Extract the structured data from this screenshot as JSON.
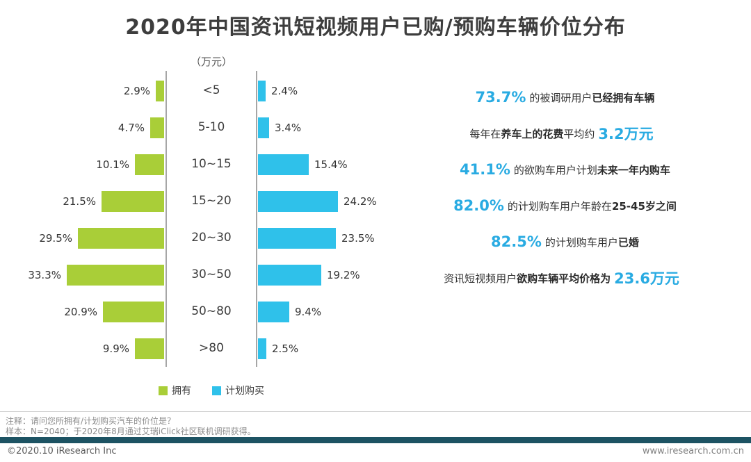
{
  "chart_data": {
    "type": "bar",
    "subtype": "butterfly",
    "title": "2020年中国资讯短视频用户已购/预购车辆价位分布",
    "unit_label": "（万元）",
    "categories": [
      "<5",
      "5-10",
      "10~15",
      "15~20",
      "20~30",
      "30~50",
      "50~80",
      ">80"
    ],
    "series": [
      {
        "name": "拥有",
        "color": "#a9ce38",
        "direction": "left",
        "values": [
          2.9,
          4.7,
          10.1,
          21.5,
          29.5,
          33.3,
          20.9,
          9.9
        ]
      },
      {
        "name": "计划购买",
        "color": "#2fc1ea",
        "direction": "right",
        "values": [
          2.4,
          3.4,
          15.4,
          24.2,
          23.5,
          19.2,
          9.4,
          2.5
        ]
      }
    ],
    "value_suffix": "%",
    "legend_position": "bottom",
    "grid": false
  },
  "annotations": [
    {
      "segments": [
        {
          "text": "73.7%",
          "style": "num"
        },
        {
          "text": " 的被调研用户",
          "style": "normal"
        },
        {
          "text": "已经拥有车辆",
          "style": "bold"
        }
      ]
    },
    {
      "segments": [
        {
          "text": "每年在",
          "style": "normal"
        },
        {
          "text": "养车上的花费",
          "style": "bold"
        },
        {
          "text": "平均约 ",
          "style": "normal"
        },
        {
          "text": "3.2万元",
          "style": "num"
        }
      ]
    },
    {
      "segments": [
        {
          "text": "41.1%",
          "style": "num"
        },
        {
          "text": " 的欲购车用户计划",
          "style": "normal"
        },
        {
          "text": "未来一年内购车",
          "style": "bold"
        }
      ]
    },
    {
      "segments": [
        {
          "text": "82.0%",
          "style": "num"
        },
        {
          "text": " 的计划购车用户年龄在",
          "style": "normal"
        },
        {
          "text": "25-45岁之间",
          "style": "bold"
        }
      ]
    },
    {
      "segments": [
        {
          "text": "82.5%",
          "style": "num"
        },
        {
          "text": " 的计划购车用户",
          "style": "normal"
        },
        {
          "text": "已婚",
          "style": "bold"
        }
      ]
    },
    {
      "segments": [
        {
          "text": "资讯短视频用户",
          "style": "normal"
        },
        {
          "text": "欲购车辆平均价格为 ",
          "style": "bold"
        },
        {
          "text": "23.6万元",
          "style": "num"
        }
      ]
    }
  ],
  "notes": {
    "line1": "注释：请问您所拥有/计划购买汽车的价位是？",
    "line2": "样本：N=2040；于2020年8月通过艾瑞iClick社区联机调研获得。"
  },
  "footer": {
    "left": "©2020.10 iResearch Inc",
    "right": "www.iresearch.com.cn"
  },
  "colors": {
    "highlight": "#29abe2",
    "footer_bar": "#1d5363",
    "axis": "#a6a6a6",
    "title_text": "#3d3d3d"
  }
}
